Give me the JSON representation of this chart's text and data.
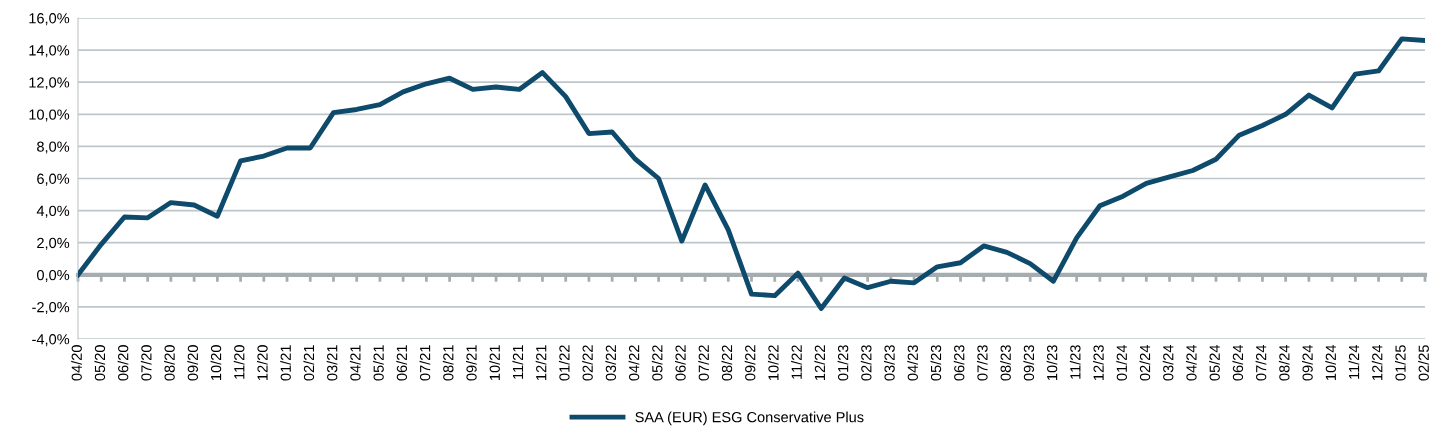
{
  "chart_data": {
    "type": "line",
    "categories": [
      "04/20",
      "05/20",
      "06/20",
      "07/20",
      "08/20",
      "09/20",
      "10/20",
      "11/20",
      "12/20",
      "01/21",
      "02/21",
      "03/21",
      "04/21",
      "05/21",
      "06/21",
      "07/21",
      "08/21",
      "09/21",
      "10/21",
      "11/21",
      "12/21",
      "01/22",
      "02/22",
      "03/22",
      "04/22",
      "05/22",
      "06/22",
      "07/22",
      "08/22",
      "09/22",
      "10/22",
      "11/22",
      "12/22",
      "01/23",
      "02/23",
      "03/23",
      "04/23",
      "05/23",
      "06/23",
      "07/23",
      "08/23",
      "09/23",
      "10/23",
      "11/23",
      "12/23",
      "01/24",
      "02/24",
      "03/24",
      "04/24",
      "05/24",
      "06/24",
      "07/24",
      "08/24",
      "09/24",
      "10/24",
      "11/24",
      "12/24",
      "01/25",
      "02/25"
    ],
    "series": [
      {
        "name": "SAA (EUR) ESG Conservative Plus",
        "color": "#0d4a6b",
        "values": [
          0.0,
          1.9,
          3.6,
          3.55,
          4.5,
          4.35,
          3.65,
          7.1,
          7.4,
          7.9,
          7.9,
          10.1,
          10.3,
          10.6,
          11.4,
          11.9,
          12.25,
          11.55,
          11.7,
          11.55,
          12.6,
          11.1,
          8.8,
          8.9,
          7.2,
          6.0,
          2.1,
          5.6,
          2.8,
          -1.2,
          -1.3,
          0.1,
          -2.1,
          -0.2,
          -0.8,
          -0.4,
          -0.5,
          0.5,
          0.75,
          1.8,
          1.4,
          0.7,
          -0.4,
          2.3,
          4.3,
          4.9,
          5.7,
          6.1,
          6.5,
          7.2,
          8.7,
          9.3,
          10.0,
          11.2,
          10.4,
          12.5,
          12.7,
          14.7,
          14.6
        ]
      }
    ],
    "ylim": [
      -4,
      16
    ],
    "yticks": [
      {
        "value": -4,
        "label": "-4,0%"
      },
      {
        "value": -2,
        "label": "-2,0%"
      },
      {
        "value": 0,
        "label": "0,0%"
      },
      {
        "value": 2,
        "label": "2,0%"
      },
      {
        "value": 4,
        "label": "4,0%"
      },
      {
        "value": 6,
        "label": "6,0%"
      },
      {
        "value": 8,
        "label": "8,0%"
      },
      {
        "value": 10,
        "label": "10,0%"
      },
      {
        "value": 12,
        "label": "12,0%"
      },
      {
        "value": 14,
        "label": "14,0%"
      },
      {
        "value": 16,
        "label": "16,0%"
      }
    ],
    "grid": "y",
    "legend": "bottom",
    "marker": "none",
    "line_style": "solid"
  }
}
